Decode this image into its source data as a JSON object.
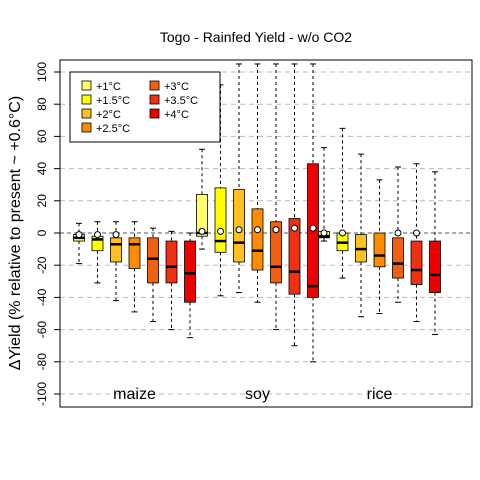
{
  "chart_data": {
    "type": "box",
    "title": "Togo - Rainfed Yield - w/o CO2",
    "ylabel": "ΔYield (% relative to present ~ +0.6°C)",
    "xlabel": "",
    "ylim": [
      -105,
      105
    ],
    "yticks": [
      -100,
      -80,
      -60,
      -40,
      -20,
      0,
      20,
      40,
      60,
      80,
      100
    ],
    "grid": "horizontal dashed",
    "zero_line": true,
    "legend_position": "top-left",
    "series": [
      {
        "name": "+1°C",
        "color": "#FFFF66"
      },
      {
        "name": "+1.5°C",
        "color": "#FFFF00"
      },
      {
        "name": "+2°C",
        "color": "#FFC020"
      },
      {
        "name": "+2.5°C",
        "color": "#FF8C00"
      },
      {
        "name": "+3°C",
        "color": "#F06010"
      },
      {
        "name": "+3.5°C",
        "color": "#F03010"
      },
      {
        "name": "+4°C",
        "color": "#EE0000"
      }
    ],
    "groups": [
      {
        "name": "maize",
        "boxes": [
          {
            "series": "+1°C",
            "min": -19,
            "q1": -5,
            "median": -3,
            "q3": -1,
            "max": 6,
            "mean": -1
          },
          {
            "series": "+1.5°C",
            "min": -31,
            "q1": -11,
            "median": -4,
            "q3": -2,
            "max": 7,
            "mean": -1
          },
          {
            "series": "+2°C",
            "min": -42,
            "q1": -18,
            "median": -7,
            "q3": -3,
            "max": 7,
            "mean": -1
          },
          {
            "series": "+2.5°C",
            "min": -49,
            "q1": -22,
            "median": -7,
            "q3": -3,
            "max": 7,
            "mean": null
          },
          {
            "series": "+3°C",
            "min": -55,
            "q1": -31,
            "median": -16,
            "q3": -3,
            "max": 3,
            "mean": null
          },
          {
            "series": "+3.5°C",
            "min": -60,
            "q1": -31,
            "median": -21,
            "q3": -5,
            "max": 1,
            "mean": null
          },
          {
            "series": "+4°C",
            "min": -65,
            "q1": -43,
            "median": -25,
            "q3": -5,
            "max": 0,
            "mean": null
          }
        ]
      },
      {
        "name": "soy",
        "boxes": [
          {
            "series": "+1°C",
            "min": -10,
            "q1": -2,
            "median": 0,
            "q3": 24,
            "max": 52,
            "mean": 1
          },
          {
            "series": "+1.5°C",
            "min": -39,
            "q1": -12,
            "median": -5,
            "q3": 28,
            "max": 92,
            "mean": 1
          },
          {
            "series": "+2°C",
            "min": -37,
            "q1": -18,
            "median": -6,
            "q3": 27,
            "max": 105,
            "mean": 2
          },
          {
            "series": "+2.5°C",
            "min": -43,
            "q1": -23,
            "median": -11,
            "q3": 15,
            "max": 105,
            "mean": 2
          },
          {
            "series": "+3°C",
            "min": -60,
            "q1": -31,
            "median": -21,
            "q3": 7,
            "max": 105,
            "mean": 2
          },
          {
            "series": "+3.5°C",
            "min": -70,
            "q1": -38,
            "median": -24,
            "q3": 9,
            "max": 105,
            "mean": 3
          },
          {
            "series": "+4°C",
            "min": -80,
            "q1": -40,
            "median": -33,
            "q3": 43,
            "max": 105,
            "mean": 3
          }
        ]
      },
      {
        "name": "rice",
        "boxes": [
          {
            "series": "+1°C",
            "min": -5,
            "q1": -3,
            "median": -2,
            "q3": 1,
            "max": 53,
            "mean": 0
          },
          {
            "series": "+1.5°C",
            "min": -28,
            "q1": -11,
            "median": -6,
            "q3": 0,
            "max": 65,
            "mean": 0
          },
          {
            "series": "+2°C",
            "min": -52,
            "q1": -18,
            "median": -10,
            "q3": -1,
            "max": 49,
            "mean": null
          },
          {
            "series": "+2.5°C",
            "min": -50,
            "q1": -21,
            "median": -14,
            "q3": 0,
            "max": 33,
            "mean": null
          },
          {
            "series": "+3°C",
            "min": -43,
            "q1": -28,
            "median": -19,
            "q3": -3,
            "max": 41,
            "mean": 0
          },
          {
            "series": "+3.5°C",
            "min": -55,
            "q1": -32,
            "median": -23,
            "q3": -5,
            "max": 43,
            "mean": 0
          },
          {
            "series": "+4°C",
            "min": -63,
            "q1": -37,
            "median": -26,
            "q3": -5,
            "max": 38,
            "mean": null
          }
        ]
      }
    ]
  }
}
